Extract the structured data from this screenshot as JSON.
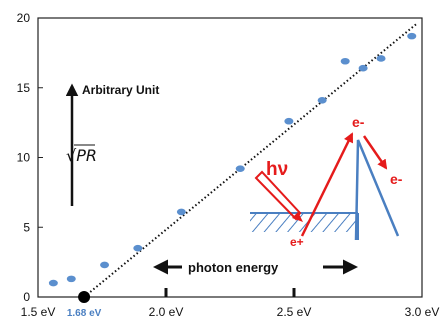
{
  "chart_data": {
    "type": "scatter",
    "xlim": [
      1.5,
      3.0
    ],
    "ylim": [
      0,
      20
    ],
    "x_ticks": [
      {
        "value": 1.5,
        "label": "1.5 eV"
      },
      {
        "value": 2.0,
        "label": "2.0 eV"
      },
      {
        "value": 2.5,
        "label": "2.5 eV"
      },
      {
        "value": 3.0,
        "label": "3.0 eV"
      }
    ],
    "y_ticks": [
      {
        "value": 0,
        "label": "0"
      },
      {
        "value": 5,
        "label": "5"
      },
      {
        "value": 10,
        "label": "10"
      },
      {
        "value": 15,
        "label": "15"
      },
      {
        "value": 20,
        "label": "20"
      }
    ],
    "series": [
      {
        "color": "#5b8fce",
        "points": [
          [
            1.56,
            1.0
          ],
          [
            1.63,
            1.3
          ],
          [
            1.76,
            2.3
          ],
          [
            1.89,
            3.5
          ],
          [
            2.06,
            6.1
          ],
          [
            2.29,
            9.2
          ],
          [
            2.48,
            12.6
          ],
          [
            2.61,
            14.1
          ],
          [
            2.7,
            16.9
          ],
          [
            2.77,
            16.4
          ],
          [
            2.84,
            17.1
          ],
          [
            2.96,
            18.7
          ]
        ]
      }
    ],
    "fit_line": {
      "x": [
        1.68,
        2.98
      ],
      "y": [
        0,
        19.6
      ],
      "style": "dotted",
      "color": "#111111"
    },
    "threshold": {
      "x": 1.68,
      "y": 0,
      "label": "1.68 eV",
      "color": "#4a7fc1"
    },
    "ylabel": "√PR",
    "unit_label": "Arbitrary Unit",
    "xaxis_annotation": "photon energy",
    "grid": false
  },
  "inset": {
    "photon_label": "hν",
    "electron_label_1": "e-",
    "electron_label_2": "e-",
    "hole_label": "e+",
    "accent_color": "#e51b1b",
    "band_color": "#4a7fc1"
  }
}
